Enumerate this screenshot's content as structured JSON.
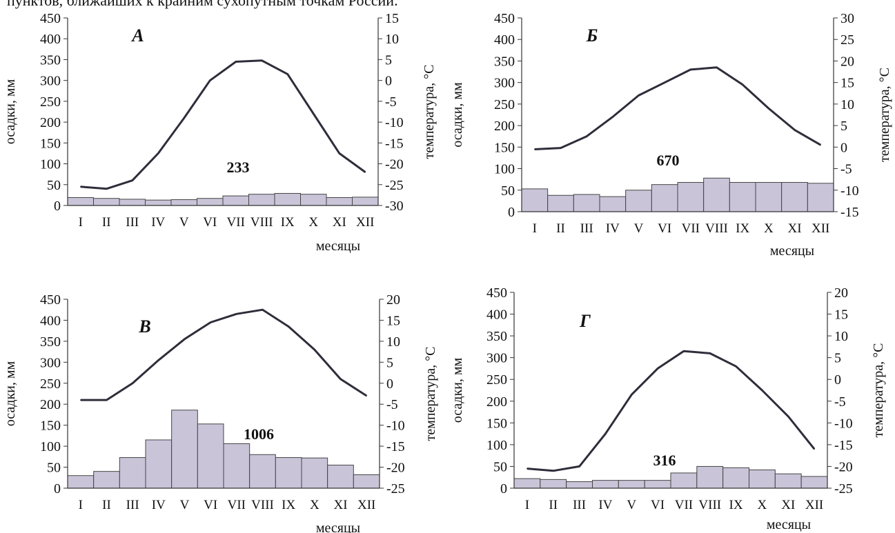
{
  "intro_text": "пунктов, ближайших к крайним сухопутным точкам России.",
  "chart_data": [
    {
      "type": "bar",
      "title": "А",
      "xlabel": "месяцы",
      "ylabel": "осадки, мм",
      "y2label": "температура, °C",
      "categories": [
        "I",
        "II",
        "III",
        "IV",
        "V",
        "VI",
        "VII",
        "VIII",
        "IX",
        "X",
        "XI",
        "XII"
      ],
      "ylim": [
        0,
        450
      ],
      "yticks": [
        0,
        50,
        100,
        150,
        200,
        250,
        300,
        350,
        400,
        450
      ],
      "y2lim": [
        -30,
        15
      ],
      "y2ticks": [
        -30,
        -25,
        -20,
        -15,
        -10,
        -5,
        0,
        5,
        10,
        15
      ],
      "annotation": "233",
      "series": [
        {
          "type": "bar",
          "axis": "left",
          "values": [
            19,
            17,
            15,
            13,
            14,
            17,
            23,
            27,
            29,
            27,
            19,
            20
          ]
        },
        {
          "type": "line",
          "axis": "right",
          "values": [
            -25.5,
            -26,
            -24,
            -17.5,
            -9,
            0,
            4.5,
            4.8,
            1.5,
            -8,
            -17.5,
            -22
          ]
        }
      ]
    },
    {
      "type": "bar",
      "title": "Б",
      "xlabel": "месяцы",
      "ylabel": "осадки, мм",
      "y2label": "температура, °C",
      "categories": [
        "I",
        "II",
        "III",
        "IV",
        "V",
        "VI",
        "VII",
        "VIII",
        "IX",
        "X",
        "XI",
        "XII"
      ],
      "ylim": [
        0,
        450
      ],
      "yticks": [
        0,
        50,
        100,
        150,
        200,
        250,
        300,
        350,
        400,
        450
      ],
      "y2lim": [
        -15,
        30
      ],
      "y2ticks": [
        -15,
        -10,
        -5,
        0,
        5,
        10,
        15,
        20,
        25,
        30
      ],
      "annotation": "670",
      "series": [
        {
          "type": "bar",
          "axis": "left",
          "values": [
            53,
            38,
            40,
            35,
            50,
            63,
            68,
            78,
            68,
            68,
            68,
            66
          ]
        },
        {
          "type": "line",
          "axis": "right",
          "values": [
            -0.5,
            -0.2,
            2.5,
            7,
            12,
            15,
            18,
            18.5,
            14.5,
            9,
            4,
            0.5
          ]
        }
      ]
    },
    {
      "type": "bar",
      "title": "В",
      "xlabel": "месяцы",
      "ylabel": "осадки, мм",
      "y2label": "температура, °C",
      "categories": [
        "I",
        "II",
        "III",
        "IV",
        "V",
        "VI",
        "VII",
        "VIII",
        "IX",
        "X",
        "XI",
        "XII"
      ],
      "ylim": [
        0,
        450
      ],
      "yticks": [
        0,
        50,
        100,
        150,
        200,
        250,
        300,
        350,
        400,
        450
      ],
      "y2lim": [
        -25,
        20
      ],
      "y2ticks": [
        -25,
        -20,
        -15,
        -10,
        -5,
        0,
        5,
        10,
        15,
        20
      ],
      "annotation": "1006",
      "series": [
        {
          "type": "bar",
          "axis": "left",
          "values": [
            30,
            40,
            73,
            115,
            186,
            153,
            106,
            80,
            73,
            72,
            55,
            32
          ]
        },
        {
          "type": "line",
          "axis": "right",
          "values": [
            -4,
            -4,
            0,
            5.5,
            10.5,
            14.5,
            16.5,
            17.5,
            13.5,
            8,
            1,
            -3
          ]
        }
      ]
    },
    {
      "type": "bar",
      "title": "Г",
      "xlabel": "месяцы",
      "ylabel": "осадки, мм",
      "y2label": "температура, °C",
      "categories": [
        "I",
        "II",
        "III",
        "IV",
        "V",
        "VI",
        "VII",
        "VIII",
        "IX",
        "X",
        "XI",
        "XII"
      ],
      "ylim": [
        0,
        450
      ],
      "yticks": [
        0,
        50,
        100,
        150,
        200,
        250,
        300,
        350,
        400,
        450
      ],
      "y2lim": [
        -25,
        20
      ],
      "y2ticks": [
        -25,
        -20,
        -15,
        -10,
        -5,
        0,
        5,
        10,
        15,
        20
      ],
      "annotation": "316",
      "series": [
        {
          "type": "bar",
          "axis": "left",
          "values": [
            22,
            20,
            15,
            18,
            18,
            18,
            35,
            50,
            47,
            42,
            33,
            27
          ]
        },
        {
          "type": "line",
          "axis": "right",
          "values": [
            -20.5,
            -21,
            -20,
            -12.5,
            -3.5,
            2.5,
            6.5,
            6,
            3,
            -2.5,
            -8.5,
            -16
          ]
        }
      ]
    }
  ]
}
